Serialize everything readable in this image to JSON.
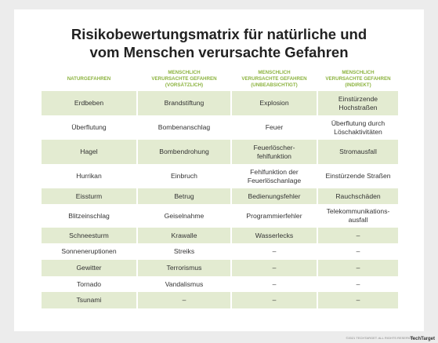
{
  "header": {
    "title": "Risikobewertungsmatrix für natürliche und\nvom Menschen verursachte Gefahren"
  },
  "table": {
    "columns": [
      "NATURGEFAHREN",
      "MENSCHLICH\nVERURSACHTE GEFAHREN\n(VORSÄTZLICH)",
      "MENSCHLICH\nVERURSACHTE GEFAHREN\n(UNBEABSICHTIGT)",
      "MENSCHLICH\nVERURSACHTE GEFAHREN\n(INDIREKT)"
    ],
    "rows": [
      [
        "Erdbeben",
        "Brandstiftung",
        "Explosion",
        "Einstürzende\nHochstraßen"
      ],
      [
        "Überflutung",
        "Bombenanschlag",
        "Feuer",
        "Überflutung durch\nLöschaktivitäten"
      ],
      [
        "Hagel",
        "Bombendrohung",
        "Feuerlöscher-\nfehlfunktion",
        "Stromausfall"
      ],
      [
        "Hurrikan",
        "Einbruch",
        "Fehlfunktion der\nFeuerlöschanlage",
        "Einstürzende Straßen"
      ],
      [
        "Eissturm",
        "Betrug",
        "Bedienungsfehler",
        "Rauchschäden"
      ],
      [
        "Blitzeinschlag",
        "Geiselnahme",
        "Programmierfehler",
        "Telekommunikations-\nausfall"
      ],
      [
        "Schneesturm",
        "Krawalle",
        "Wasserlecks",
        "–"
      ],
      [
        "Sonneneruptionen",
        "Streiks",
        "–",
        "–"
      ],
      [
        "Gewitter",
        "Terrorismus",
        "–",
        "–"
      ],
      [
        "Tornado",
        "Vandalismus",
        "–",
        "–"
      ],
      [
        "Tsunami",
        "–",
        "–",
        "–"
      ]
    ]
  },
  "footer": {
    "copyright": "©2021 TECHTARGET. ALL RIGHTS RESERVED",
    "logo": "TechTarget"
  }
}
